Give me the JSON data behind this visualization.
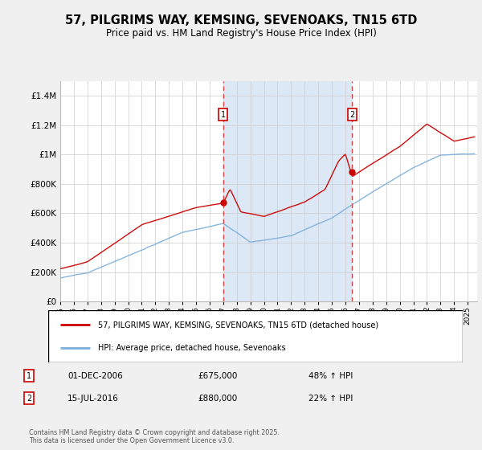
{
  "title": "57, PILGRIMS WAY, KEMSING, SEVENOAKS, TN15 6TD",
  "subtitle": "Price paid vs. HM Land Registry's House Price Index (HPI)",
  "red_label": "57, PILGRIMS WAY, KEMSING, SEVENOAKS, TN15 6TD (detached house)",
  "blue_label": "HPI: Average price, detached house, Sevenoaks",
  "sale1_date": "01-DEC-2006",
  "sale1_price": 675000,
  "sale1_pct": "48%",
  "sale2_date": "15-JUL-2016",
  "sale2_price": 880000,
  "sale2_pct": "22%",
  "footer": "Contains HM Land Registry data © Crown copyright and database right 2025.\nThis data is licensed under the Open Government Licence v3.0.",
  "ylim": [
    0,
    1500000
  ],
  "fig_bg": "#f0f0f0",
  "plot_bg": "#ffffff",
  "shade_color": "#dce8f5",
  "red_color": "#cc0000",
  "blue_color": "#7aaddc",
  "dashed_color": "#dd4444",
  "grid_color": "#cccccc",
  "sale1_x": 2007.0,
  "sale2_x": 2016.5
}
